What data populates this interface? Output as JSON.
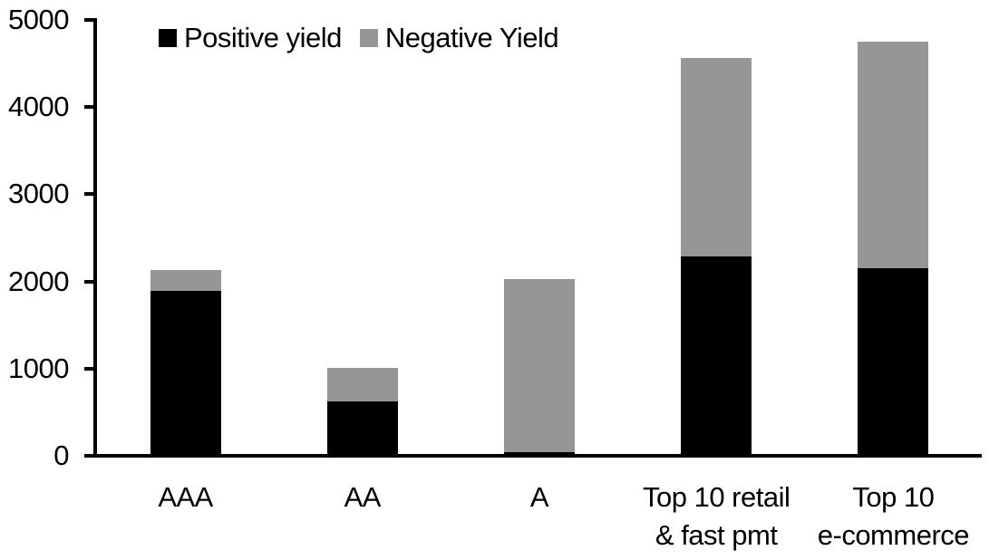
{
  "colors": {
    "positive": "#000000",
    "negative": "#969696",
    "axis": "#000000",
    "background": "#ffffff"
  },
  "legend": {
    "positive_label": "Positive yield",
    "negative_label": "Negative Yield"
  },
  "chart_data": {
    "type": "bar",
    "stacked": true,
    "title": "",
    "xlabel": "",
    "ylabel": "",
    "categories": [
      "AAA",
      "AA",
      "A",
      "Top 10 retail\n& fast pmt",
      "Top 10\ne-commerce"
    ],
    "series": [
      {
        "name": "Positive yield",
        "color": "#000000",
        "values": [
          1890,
          625,
          45,
          2285,
          2155
        ]
      },
      {
        "name": "Negative Yield",
        "color": "#969696",
        "values": [
          240,
          380,
          1980,
          2275,
          2600
        ]
      }
    ],
    "totals": [
      2130,
      1005,
      2025,
      4560,
      4755
    ],
    "ylim": [
      0,
      5000
    ],
    "yticks": [
      0,
      1000,
      2000,
      3000,
      4000,
      5000
    ],
    "grid": false,
    "legend_position": "top"
  }
}
